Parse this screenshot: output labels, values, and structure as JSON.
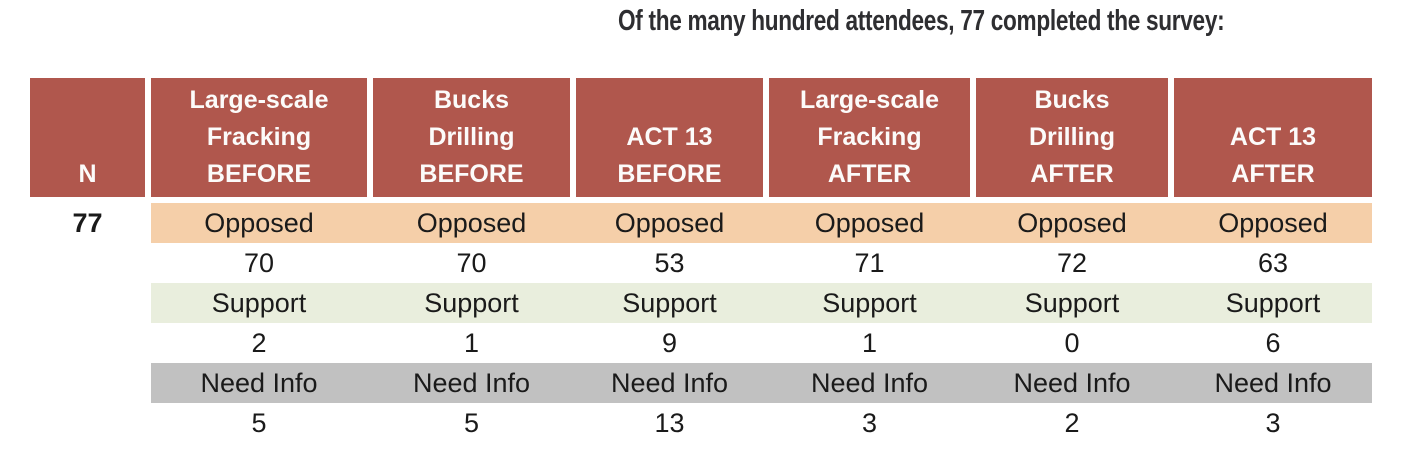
{
  "title": "Of the many hundred attendees, 77 completed the survey:",
  "table": {
    "n_header": "N",
    "n_value": "77",
    "column_headers": [
      "Large-scale\nFracking\nBEFORE",
      "Bucks\nDrilling\nBEFORE",
      "ACT 13\nBEFORE",
      "Large-scale\nFracking\nAFTER",
      "Bucks\nDrilling\nAFTER",
      "ACT 13\nAFTER"
    ],
    "row_groups": [
      {
        "label": "Opposed",
        "values": [
          "70",
          "70",
          "53",
          "71",
          "72",
          "63"
        ]
      },
      {
        "label": "Support",
        "values": [
          "2",
          "1",
          "9",
          "1",
          "0",
          "6"
        ]
      },
      {
        "label": "Need Info",
        "values": [
          "5",
          "5",
          "13",
          "3",
          "2",
          "3"
        ]
      }
    ]
  },
  "colors": {
    "header_bg": "#b0574d",
    "header_text": "#fcfbfa",
    "opposed_bg": "#f5cfa9",
    "support_bg": "#e9eedd",
    "need_info_bg": "#c1c1c1",
    "body_text": "#1a1a1a",
    "title_text": "#2e2e31"
  },
  "chart_data": {
    "type": "table",
    "title": "Of the many hundred attendees, 77 completed the survey:",
    "n": 77,
    "columns": [
      "Large-scale Fracking BEFORE",
      "Bucks Drilling BEFORE",
      "ACT 13 BEFORE",
      "Large-scale Fracking AFTER",
      "Bucks Drilling AFTER",
      "ACT 13 AFTER"
    ],
    "rows": [
      {
        "label": "Opposed",
        "values": [
          70,
          70,
          53,
          71,
          72,
          63
        ]
      },
      {
        "label": "Support",
        "values": [
          2,
          1,
          9,
          1,
          0,
          6
        ]
      },
      {
        "label": "Need Info",
        "values": [
          5,
          5,
          13,
          3,
          2,
          3
        ]
      }
    ],
    "legend_position": "none",
    "grid": false
  }
}
